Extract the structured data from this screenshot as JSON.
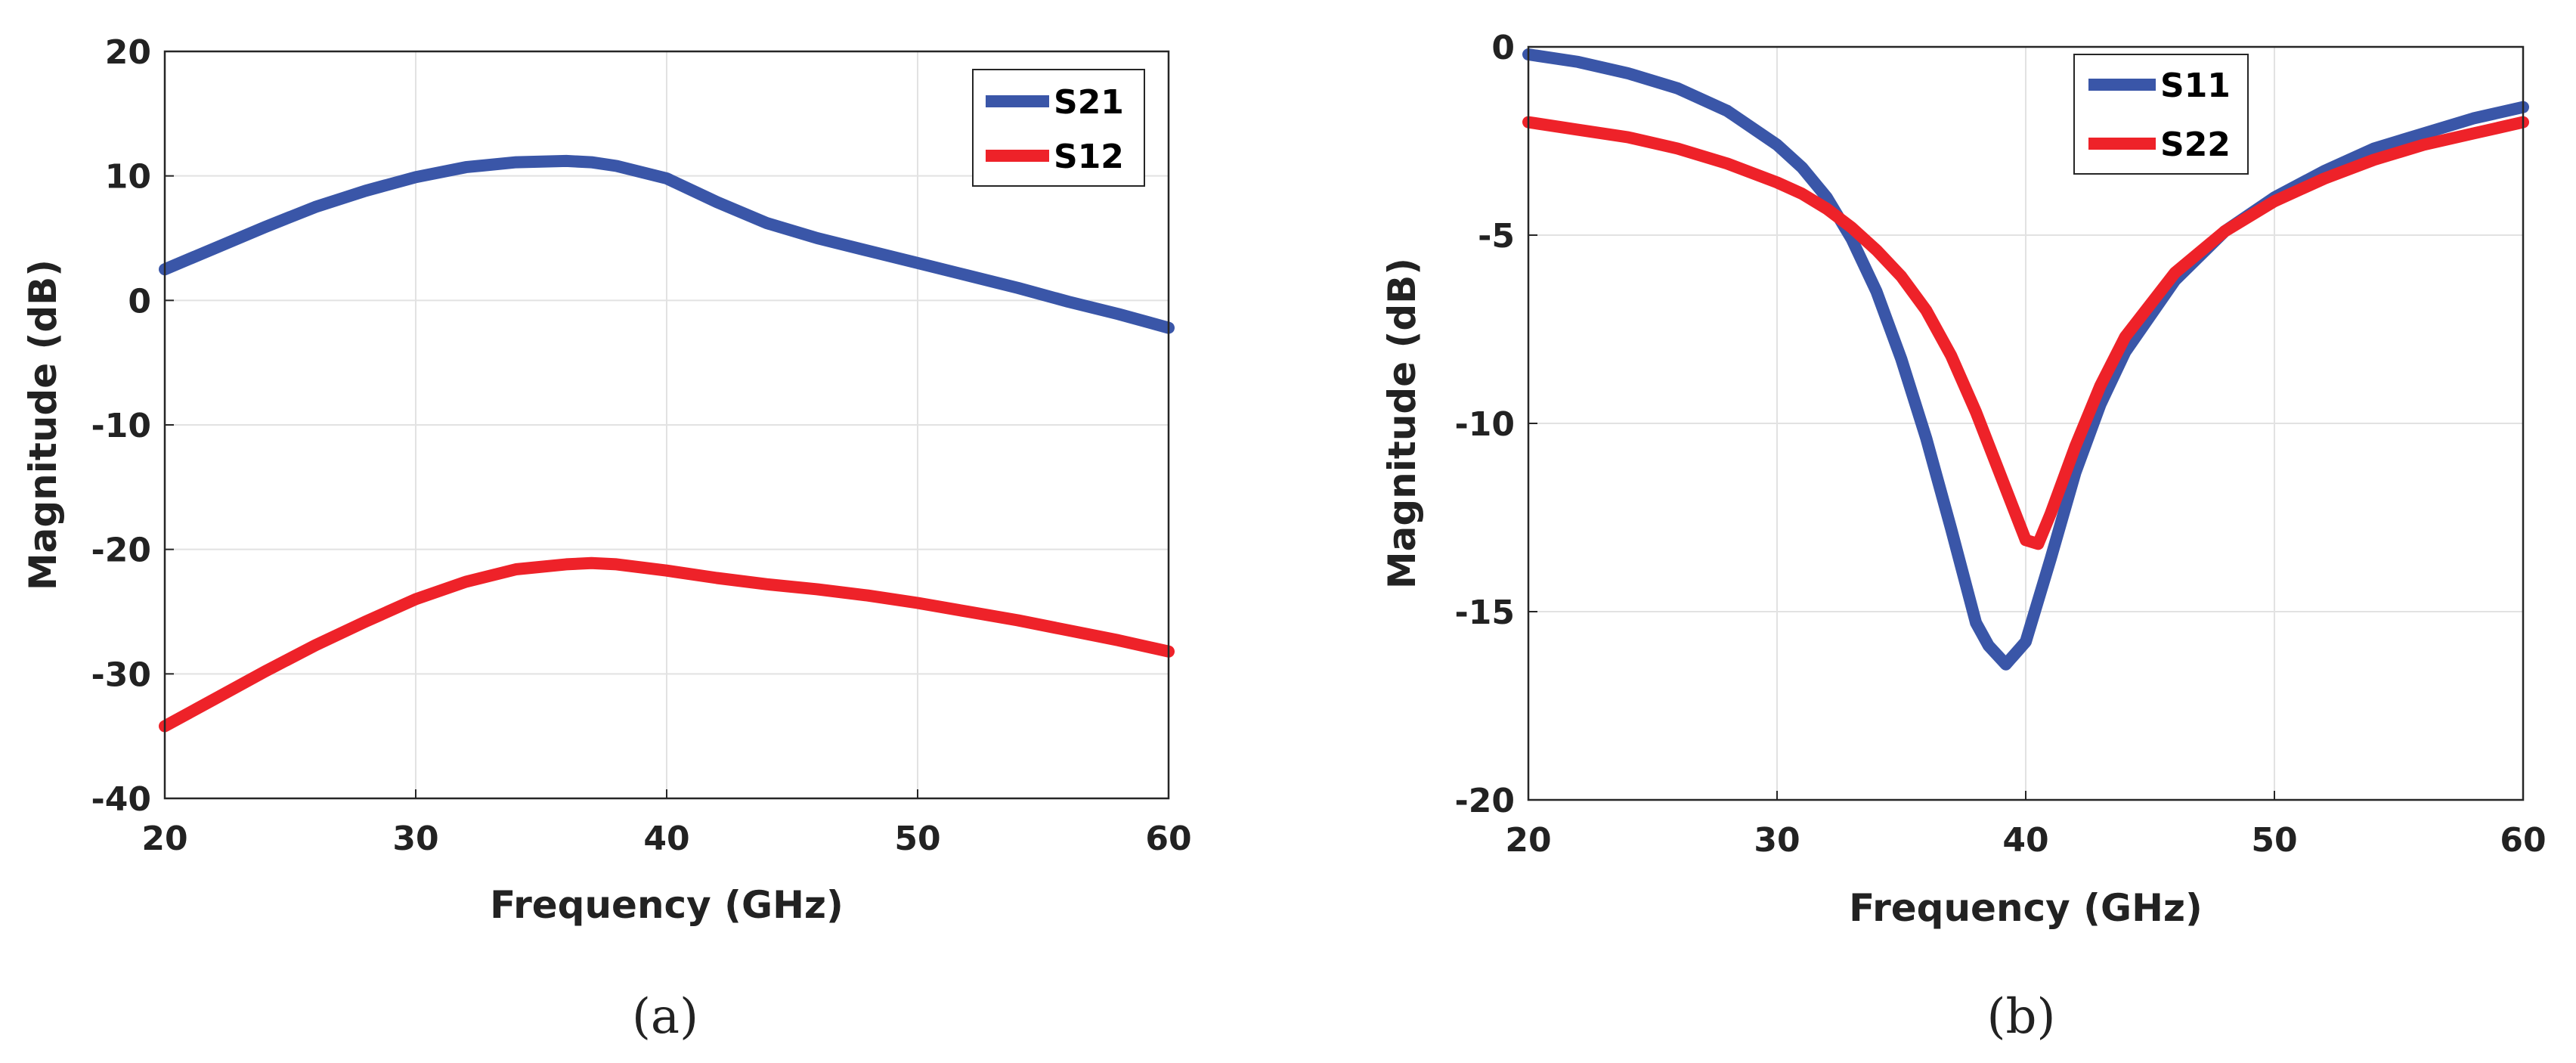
{
  "colors": {
    "blue": "#3a56a8",
    "red": "#ee2229"
  },
  "chart_data": [
    {
      "type": "line",
      "caption": "(a)",
      "xlabel": "Frequency (GHz)",
      "ylabel": "Magnitude (dB)",
      "xlim": [
        20,
        60
      ],
      "ylim": [
        -40,
        20
      ],
      "xticks": [
        20,
        30,
        40,
        50,
        60
      ],
      "yticks": [
        20,
        10,
        0,
        -10,
        -20,
        -30,
        -40
      ],
      "grid": true,
      "legend_position": "top-right",
      "series": [
        {
          "name": "S21",
          "color": "#3a56a8",
          "x": [
            20,
            22,
            24,
            26,
            28,
            30,
            32,
            34,
            36,
            37,
            38,
            40,
            42,
            44,
            46,
            48,
            50,
            52,
            54,
            56,
            58,
            60
          ],
          "y": [
            2.5,
            4.2,
            5.9,
            7.5,
            8.8,
            9.9,
            10.7,
            11.1,
            11.2,
            11.1,
            10.8,
            9.8,
            7.9,
            6.2,
            5.0,
            4.0,
            3.0,
            2.0,
            1.0,
            -0.1,
            -1.1,
            -2.2
          ]
        },
        {
          "name": "S12",
          "color": "#ee2229",
          "x": [
            20,
            22,
            24,
            26,
            28,
            30,
            32,
            34,
            36,
            37,
            38,
            40,
            42,
            44,
            46,
            48,
            50,
            52,
            54,
            56,
            58,
            60
          ],
          "y": [
            -34.2,
            -32.0,
            -29.8,
            -27.7,
            -25.8,
            -24.0,
            -22.6,
            -21.6,
            -21.2,
            -21.1,
            -21.2,
            -21.7,
            -22.3,
            -22.8,
            -23.2,
            -23.7,
            -24.3,
            -25.0,
            -25.7,
            -26.5,
            -27.3,
            -28.2
          ]
        }
      ]
    },
    {
      "type": "line",
      "caption": "(b)",
      "xlabel": "Frequency (GHz)",
      "ylabel": "Magnitude (dB)",
      "xlim": [
        20,
        60
      ],
      "ylim": [
        -20,
        0
      ],
      "xticks": [
        20,
        30,
        40,
        50,
        60
      ],
      "yticks": [
        0,
        -5,
        -10,
        -15,
        -20
      ],
      "grid": true,
      "legend_position": "top-center",
      "series": [
        {
          "name": "S11",
          "color": "#3a56a8",
          "x": [
            20,
            22,
            24,
            26,
            28,
            30,
            31,
            32,
            33,
            34,
            35,
            36,
            37,
            38,
            38.5,
            39.2,
            40,
            41,
            42,
            43,
            44,
            46,
            48,
            50,
            52,
            54,
            56,
            58,
            60
          ],
          "y": [
            -0.2,
            -0.4,
            -0.7,
            -1.1,
            -1.7,
            -2.6,
            -3.2,
            -4.0,
            -5.1,
            -6.5,
            -8.3,
            -10.4,
            -12.8,
            -15.3,
            -15.9,
            -16.4,
            -15.8,
            -13.6,
            -11.3,
            -9.5,
            -8.1,
            -6.2,
            -4.9,
            -4.0,
            -3.3,
            -2.7,
            -2.3,
            -1.9,
            -1.6
          ]
        },
        {
          "name": "S22",
          "color": "#ee2229",
          "x": [
            20,
            22,
            24,
            26,
            28,
            30,
            31,
            32,
            33,
            34,
            35,
            36,
            37,
            38,
            39,
            40,
            40.5,
            41,
            42,
            43,
            44,
            46,
            48,
            50,
            52,
            54,
            56,
            58,
            60
          ],
          "y": [
            -2.0,
            -2.2,
            -2.4,
            -2.7,
            -3.1,
            -3.6,
            -3.9,
            -4.3,
            -4.8,
            -5.4,
            -6.1,
            -7.0,
            -8.2,
            -9.7,
            -11.4,
            -13.1,
            -13.2,
            -12.4,
            -10.6,
            -9.0,
            -7.7,
            -6.0,
            -4.9,
            -4.1,
            -3.5,
            -3.0,
            -2.6,
            -2.3,
            -2.0
          ]
        }
      ]
    }
  ]
}
